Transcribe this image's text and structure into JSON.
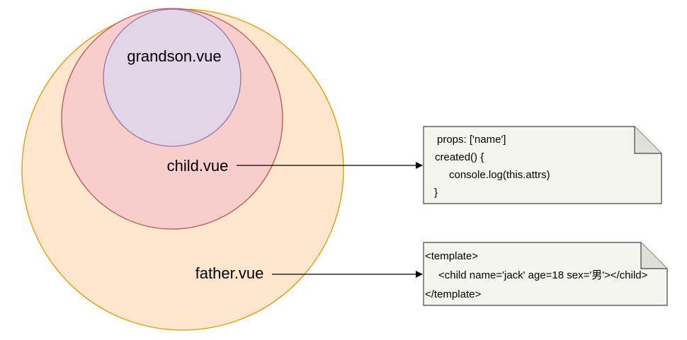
{
  "diagram": {
    "father": {
      "label": "father.vue",
      "fill": "#ffe6cc",
      "stroke": "#d79b00"
    },
    "child": {
      "label": "child.vue",
      "fill": "#f8cecc",
      "stroke": "#b85450"
    },
    "grandson": {
      "label": "grandson.vue",
      "fill": "#e1d5e7",
      "stroke": "#9673a6"
    },
    "child_note": {
      "lines": [
        "props: ['name']",
        "created() {",
        "console.log(this.attrs)",
        "}"
      ],
      "fill": "#f5f5f0",
      "stroke": "#444444"
    },
    "father_note": {
      "lines": [
        "<template>",
        "<child name='jack' age=18 sex='男'></child>",
        "</template>"
      ],
      "fill": "#f5f5f0",
      "stroke": "#444444"
    },
    "arrow_color": "#000000"
  }
}
